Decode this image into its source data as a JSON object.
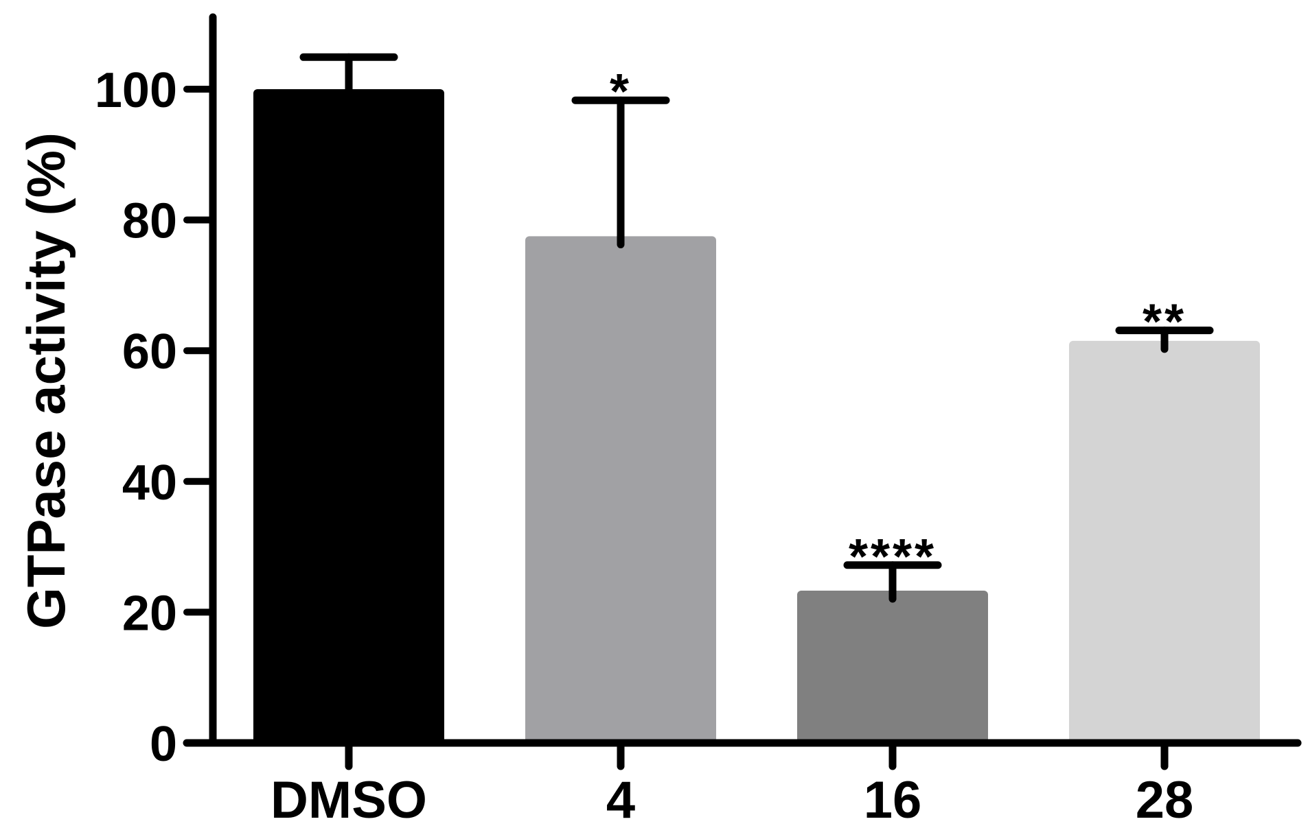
{
  "chart_data": {
    "type": "bar",
    "title": "",
    "xlabel": "",
    "ylabel": "GTPase activity (%)",
    "ylim": [
      0,
      110
    ],
    "yticks": [
      0,
      20,
      40,
      60,
      80,
      100
    ],
    "yticks_text": [
      "0",
      "20",
      "40",
      "60",
      "80",
      "100"
    ],
    "grid": false,
    "legend": "none",
    "categories": [
      "DMSO",
      "4",
      "16",
      "28"
    ],
    "values": [
      100,
      77.5,
      23.3,
      61.5
    ],
    "errors": [
      4.9,
      20.8,
      3.9,
      1.6
    ],
    "significance": [
      "",
      "*",
      "****",
      "**"
    ],
    "colors": [
      "#000000",
      "#a1a1a4",
      "#808080",
      "#d4d4d4"
    ]
  }
}
